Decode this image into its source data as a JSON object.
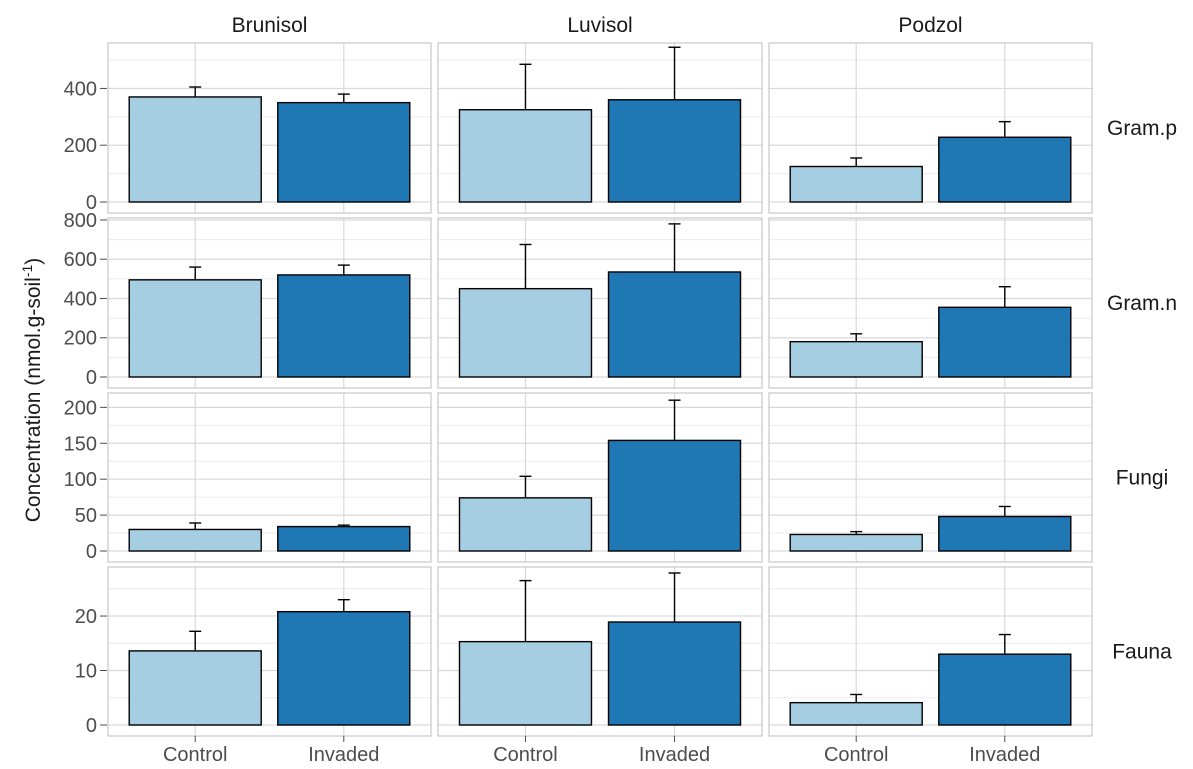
{
  "chart_data": {
    "type": "bar",
    "layout": "facet-grid",
    "columns": [
      "Brunisol",
      "Luvisol",
      "Podzol"
    ],
    "rows": [
      "Gram.p",
      "Gram.n",
      "Fungi",
      "Fauna"
    ],
    "categories": [
      "Control",
      "Invaded"
    ],
    "colors": {
      "Control": "#a6cee3",
      "Invaded": "#1f78b4"
    },
    "ylabel": {
      "main": "Concentration (nmol.g-soil",
      "sup": "-1",
      "end": ")"
    },
    "grid": true,
    "error_bars": true,
    "panels": [
      {
        "row": "Gram.p",
        "ylim": [
          0,
          560
        ],
        "ticks": [
          0,
          200,
          400
        ],
        "values": {
          "Brunisol": [
            370,
            350
          ],
          "Luvisol": [
            325,
            360
          ],
          "Podzol": [
            125,
            228
          ]
        },
        "errors": {
          "Brunisol": [
            35,
            30
          ],
          "Luvisol": [
            160,
            185
          ],
          "Podzol": [
            30,
            55
          ]
        }
      },
      {
        "row": "Gram.n",
        "ylim": [
          0,
          810
        ],
        "ticks": [
          0,
          200,
          400,
          600,
          800
        ],
        "values": {
          "Brunisol": [
            495,
            520
          ],
          "Luvisol": [
            450,
            535
          ],
          "Podzol": [
            180,
            355
          ]
        },
        "errors": {
          "Brunisol": [
            65,
            50
          ],
          "Luvisol": [
            225,
            245
          ],
          "Podzol": [
            40,
            105
          ]
        }
      },
      {
        "row": "Fungi",
        "ylim": [
          0,
          220
        ],
        "ticks": [
          0,
          50,
          100,
          150,
          200
        ],
        "values": {
          "Brunisol": [
            30,
            34
          ],
          "Luvisol": [
            74,
            154
          ],
          "Podzol": [
            23,
            48
          ]
        },
        "errors": {
          "Brunisol": [
            9,
            2
          ],
          "Luvisol": [
            30,
            56
          ],
          "Podzol": [
            4,
            14
          ]
        }
      },
      {
        "row": "Fauna",
        "ylim": [
          0,
          29
        ],
        "ticks": [
          0,
          10,
          20
        ],
        "values": {
          "Brunisol": [
            13.6,
            20.8
          ],
          "Luvisol": [
            15.3,
            18.9
          ],
          "Podzol": [
            4.1,
            13.0
          ]
        },
        "errors": {
          "Brunisol": [
            3.6,
            2.2
          ],
          "Luvisol": [
            11.2,
            9.0
          ],
          "Podzol": [
            1.5,
            3.6
          ]
        }
      }
    ]
  }
}
